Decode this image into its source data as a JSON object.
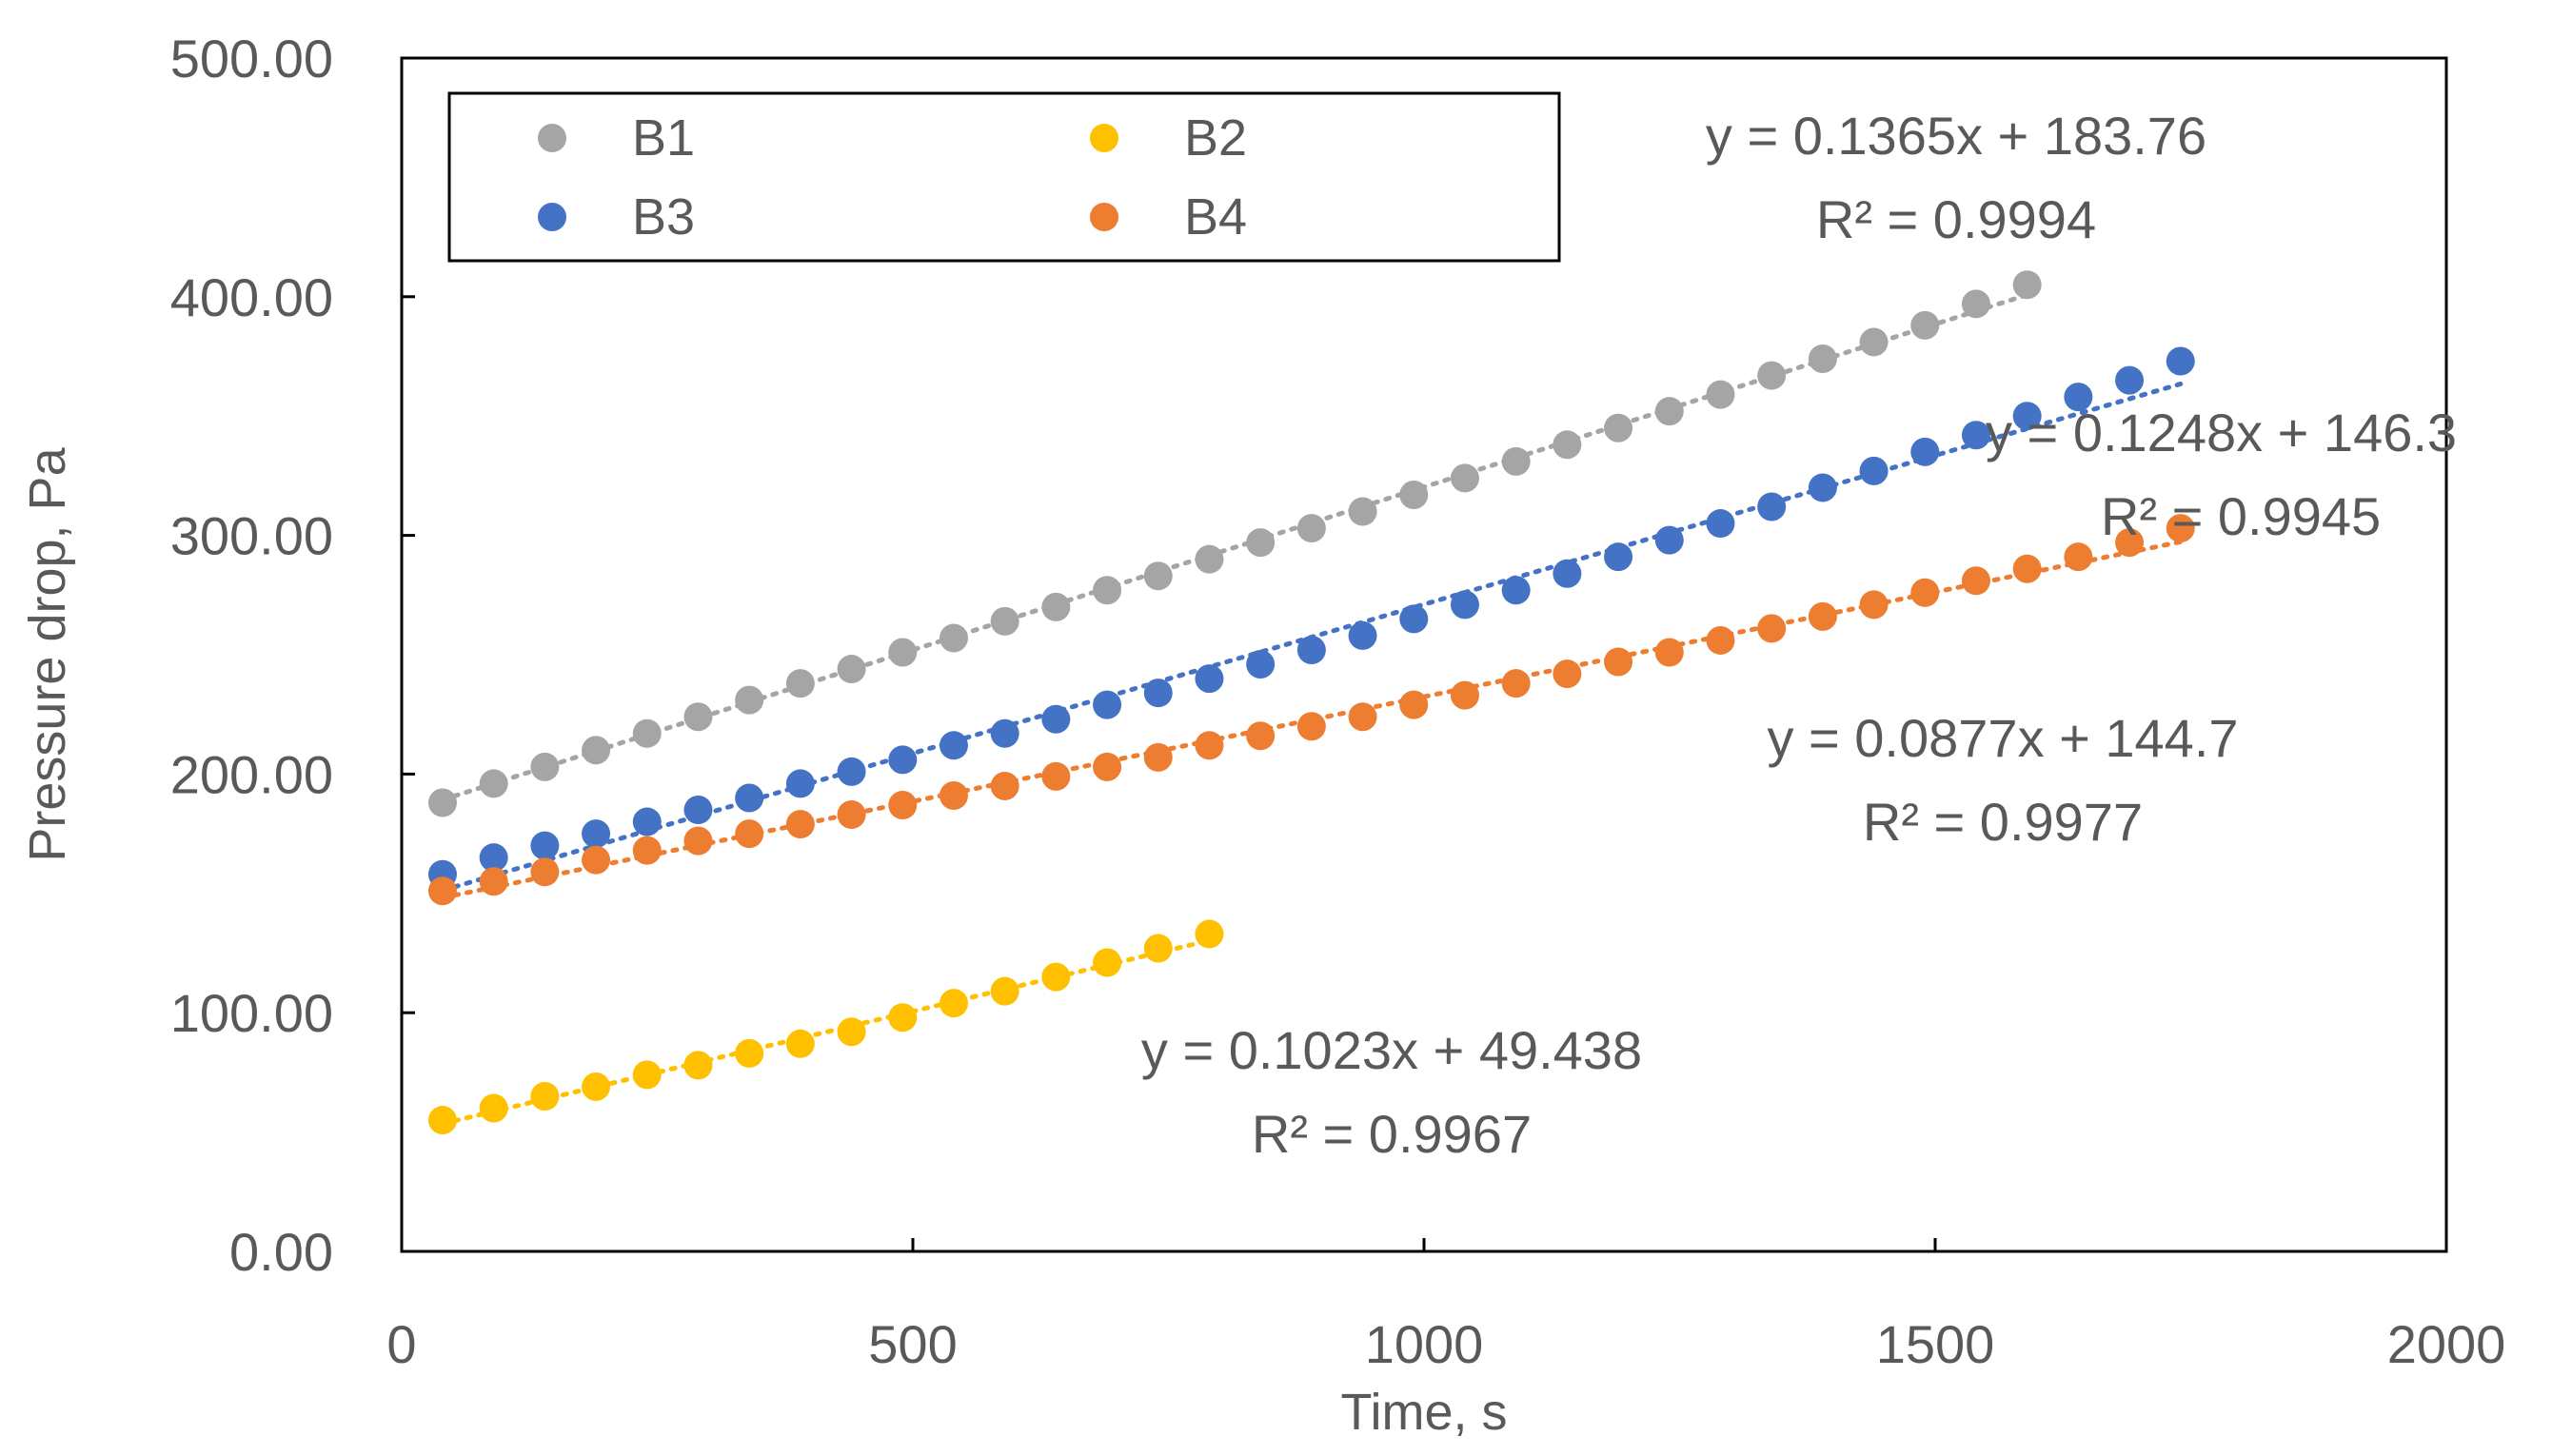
{
  "colors": {
    "axis": "#000000",
    "text": "#595959",
    "B1": "#A5A5A5",
    "B2": "#FFC000",
    "B3": "#4472C4",
    "B4": "#ED7D31"
  },
  "chart_data": {
    "type": "scatter",
    "title": "",
    "xlabel": "Time, s",
    "ylabel": "Pressure drop, Pa",
    "xlim": [
      0,
      2000
    ],
    "ylim": [
      0,
      500
    ],
    "x_ticks": [
      0,
      500,
      1000,
      1500,
      2000
    ],
    "x_tick_labels": [
      "0",
      "500",
      "1000",
      "1500",
      "2000"
    ],
    "y_ticks": [
      0,
      100,
      200,
      300,
      400,
      500
    ],
    "y_tick_labels": [
      "0.00",
      "100.00",
      "200.00",
      "300.00",
      "400.00",
      "500.00"
    ],
    "grid": false,
    "legend": {
      "position": "top-left",
      "entries": [
        "B1",
        "B2",
        "B3",
        "B4"
      ]
    },
    "series": [
      {
        "name": "B1",
        "color_key": "B1",
        "x": [
          40,
          90,
          140,
          190,
          240,
          290,
          340,
          390,
          440,
          490,
          540,
          590,
          640,
          690,
          740,
          790,
          840,
          890,
          940,
          990,
          1040,
          1090,
          1140,
          1190,
          1240,
          1290,
          1340,
          1390,
          1440,
          1490,
          1540,
          1590
        ],
        "y": [
          188,
          196,
          203,
          210,
          217,
          224,
          231,
          238,
          244,
          251,
          257,
          264,
          270,
          277,
          283,
          290,
          297,
          303,
          310,
          317,
          324,
          331,
          338,
          345,
          352,
          359,
          367,
          374,
          381,
          388,
          397,
          405
        ],
        "trendline": {
          "slope": 0.1365,
          "intercept": 183.76,
          "x_range": [
            40,
            1590
          ]
        },
        "equation": "y = 0.1365x + 183.76",
        "r2": "R² = 0.9994"
      },
      {
        "name": "B2",
        "color_key": "B2",
        "x": [
          40,
          90,
          140,
          190,
          240,
          290,
          340,
          390,
          440,
          490,
          540,
          590,
          640,
          690,
          740,
          790
        ],
        "y": [
          55,
          60,
          65,
          69,
          74,
          78,
          83,
          87,
          92,
          98,
          104,
          109,
          115,
          121,
          127,
          133
        ],
        "trendline": {
          "slope": 0.1023,
          "intercept": 49.438,
          "x_range": [
            40,
            790
          ]
        },
        "equation": "y = 0.1023x + 49.438",
        "r2": "R² = 0.9967"
      },
      {
        "name": "B3",
        "color_key": "B3",
        "x": [
          40,
          90,
          140,
          190,
          240,
          290,
          340,
          390,
          440,
          490,
          540,
          590,
          640,
          690,
          740,
          790,
          840,
          890,
          940,
          990,
          1040,
          1090,
          1140,
          1190,
          1240,
          1290,
          1340,
          1390,
          1440,
          1490,
          1540,
          1590,
          1640,
          1690,
          1740
        ],
        "y": [
          158,
          165,
          170,
          175,
          180,
          185,
          190,
          196,
          201,
          206,
          212,
          217,
          223,
          229,
          234,
          240,
          246,
          252,
          258,
          265,
          271,
          277,
          284,
          291,
          298,
          305,
          312,
          320,
          327,
          335,
          342,
          350,
          358,
          365,
          373
        ],
        "trendline": {
          "slope": 0.1248,
          "intercept": 146.3,
          "x_range": [
            40,
            1740
          ]
        },
        "equation": "y = 0.1248x + 146.3",
        "r2": "R² = 0.9945"
      },
      {
        "name": "B4",
        "color_key": "B4",
        "x": [
          40,
          90,
          140,
          190,
          240,
          290,
          340,
          390,
          440,
          490,
          540,
          590,
          640,
          690,
          740,
          790,
          840,
          890,
          940,
          990,
          1040,
          1090,
          1140,
          1190,
          1240,
          1290,
          1340,
          1390,
          1440,
          1490,
          1540,
          1590,
          1640,
          1690,
          1740
        ],
        "y": [
          151,
          155,
          159,
          164,
          168,
          172,
          175,
          179,
          183,
          187,
          191,
          195,
          199,
          203,
          207,
          212,
          216,
          220,
          224,
          229,
          233,
          238,
          242,
          247,
          251,
          256,
          261,
          266,
          271,
          276,
          281,
          286,
          291,
          297,
          303
        ],
        "trendline": {
          "slope": 0.0877,
          "intercept": 144.7,
          "x_range": [
            40,
            1740
          ]
        },
        "equation": "y = 0.0877x + 144.7",
        "r2": "R² = 0.9977"
      }
    ]
  }
}
